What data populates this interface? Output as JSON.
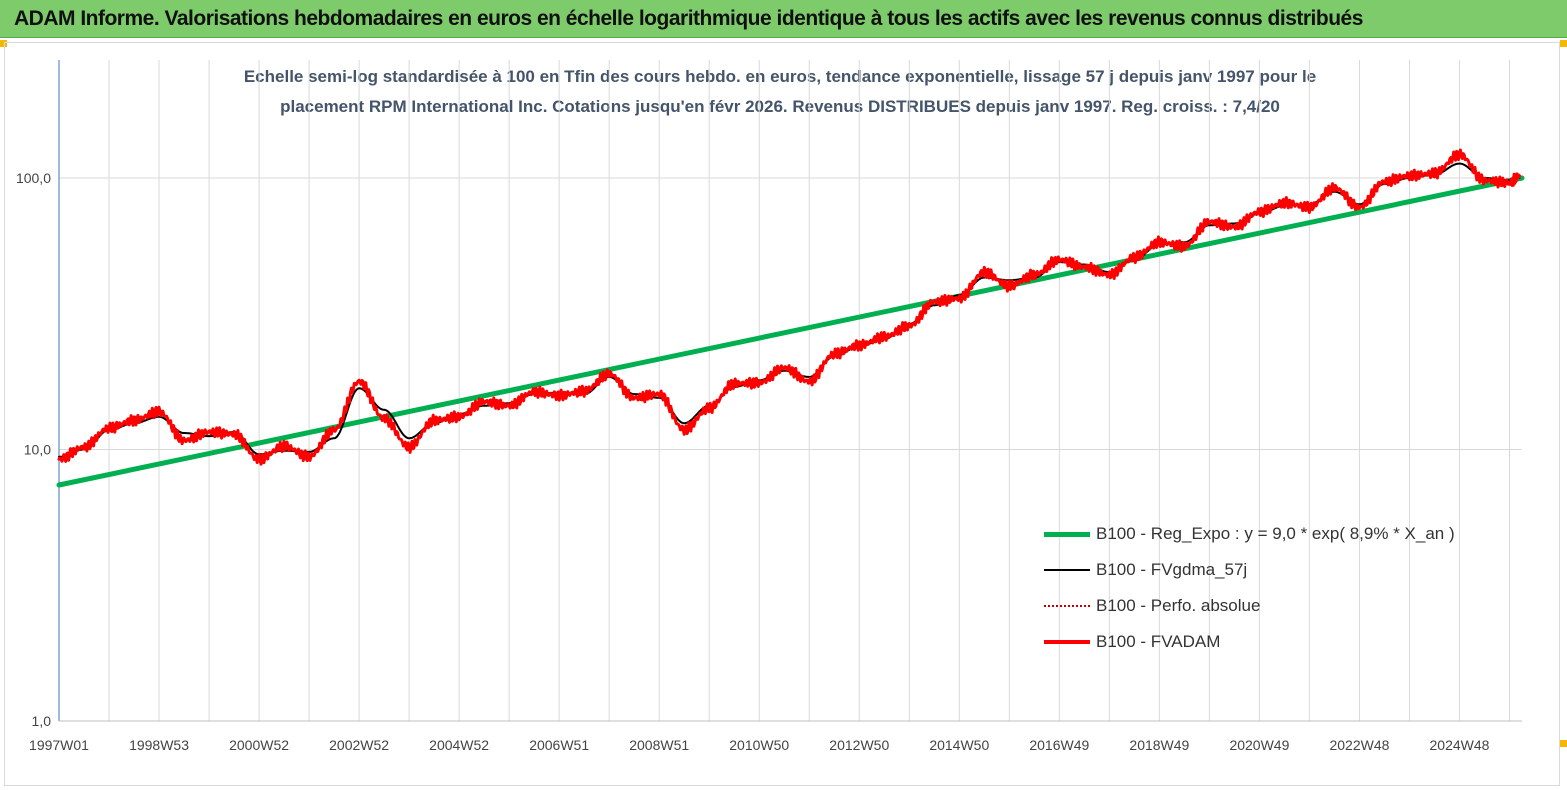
{
  "header": {
    "title": "ADAM Informe. Valorisations hebdomadaires en euros en échelle logarithmique identique à tous les actifs avec les revenus connus distribués"
  },
  "chart_data": {
    "type": "line",
    "title_line1": "Echelle semi-log standardisée à 100 en Tfin des cours hebdo. en euros, tendance exponentielle, lissage 57 j depuis janv 1997 pour le",
    "title_line2": "placement RPM International Inc. Cotations jusqu'en févr 2026. Revenus DISTRIBUES depuis janv 1997. Reg. croiss. : 7,4/20",
    "y_scale": "log",
    "ylim": [
      1,
      180
    ],
    "y_ticks": [
      "1,0",
      "10,0",
      "100,0"
    ],
    "x_range": [
      1997.0,
      2026.25
    ],
    "x_ticks": [
      "1997W01",
      "1998W53",
      "2000W52",
      "2002W52",
      "2004W52",
      "2006W51",
      "2008W51",
      "2010W50",
      "2012W50",
      "2014W50",
      "2016W49",
      "2018W49",
      "2020W49",
      "2022W48",
      "2024W48"
    ],
    "grid": "vertical",
    "legend_position": "right-middle",
    "colors": {
      "reg": "#00b050",
      "fvgdma": "#000000",
      "perfo": "#c00000",
      "fvadam": "#ff0000"
    },
    "series": [
      {
        "name": "B100 - Reg_Expo : y = 9,0 * exp( 8,9% *  X_an )",
        "key": "reg",
        "x": [
          1997.0,
          2026.25
        ],
        "values": [
          7.4,
          100
        ]
      },
      {
        "name": "B100 - FVgdma_57j",
        "key": "fvgdma",
        "x": [
          1997.0,
          1997.5,
          1998.0,
          1998.5,
          1999.0,
          1999.5,
          2000.0,
          2000.5,
          2001.0,
          2001.5,
          2002.0,
          2002.5,
          2003.0,
          2003.5,
          2004.0,
          2004.5,
          2005.0,
          2005.5,
          2006.0,
          2006.5,
          2007.0,
          2007.5,
          2008.0,
          2008.5,
          2009.0,
          2009.5,
          2010.0,
          2010.5,
          2011.0,
          2011.5,
          2012.0,
          2012.5,
          2013.0,
          2013.5,
          2014.0,
          2014.5,
          2015.0,
          2015.5,
          2016.0,
          2016.5,
          2017.0,
          2017.5,
          2018.0,
          2018.5,
          2019.0,
          2019.5,
          2020.0,
          2020.5,
          2021.0,
          2021.5,
          2022.0,
          2022.5,
          2023.0,
          2023.5,
          2024.0,
          2024.5,
          2025.0,
          2025.5,
          2026.0,
          2026.2
        ],
        "values": [
          9.4,
          10.0,
          11.8,
          12.5,
          13.2,
          11.5,
          11.2,
          11.6,
          9.6,
          9.9,
          9.8,
          11.0,
          16.8,
          14.0,
          11.0,
          12.5,
          13.5,
          14.5,
          14.8,
          16.0,
          16.2,
          16.0,
          18.5,
          16.0,
          15.5,
          12.5,
          14.5,
          17.0,
          18.0,
          19.5,
          18.5,
          22.0,
          24.0,
          25.5,
          29.0,
          34.0,
          37.0,
          43.0,
          42.0,
          43.0,
          49.0,
          48.0,
          45.0,
          50.0,
          57.0,
          58.0,
          67.0,
          68.0,
          74.0,
          79.0,
          80.0,
          89.0,
          80.0,
          95.0,
          100.0,
          103.0,
          113.0,
          100.0,
          98.0,
          100.0
        ]
      },
      {
        "name": "B100 - Perfo. absolue",
        "key": "perfo",
        "x": [],
        "values": []
      },
      {
        "name": "B100 - FVADAM",
        "key": "fvadam",
        "x": [
          1997.0,
          1997.5,
          1998.0,
          1998.5,
          1999.0,
          1999.5,
          2000.0,
          2000.5,
          2001.0,
          2001.5,
          2002.0,
          2002.5,
          2003.0,
          2003.5,
          2004.0,
          2004.5,
          2005.0,
          2005.5,
          2006.0,
          2006.5,
          2007.0,
          2007.5,
          2008.0,
          2008.5,
          2009.0,
          2009.5,
          2010.0,
          2010.5,
          2011.0,
          2011.5,
          2012.0,
          2012.5,
          2013.0,
          2013.5,
          2014.0,
          2014.5,
          2015.0,
          2015.5,
          2016.0,
          2016.5,
          2017.0,
          2017.5,
          2018.0,
          2018.5,
          2019.0,
          2019.5,
          2020.0,
          2020.5,
          2021.0,
          2021.5,
          2022.0,
          2022.5,
          2023.0,
          2023.5,
          2024.0,
          2024.5,
          2025.0,
          2025.5,
          2026.0,
          2026.2
        ],
        "values": [
          9.2,
          10.2,
          12.0,
          12.8,
          13.8,
          10.8,
          11.6,
          11.4,
          9.2,
          10.3,
          9.4,
          11.8,
          17.8,
          13.0,
          10.2,
          12.8,
          13.2,
          15.0,
          14.5,
          16.3,
          15.8,
          16.4,
          19.0,
          15.5,
          16.0,
          11.8,
          14.2,
          17.5,
          17.6,
          20.0,
          17.8,
          22.5,
          24.2,
          26.0,
          28.5,
          35.0,
          36.0,
          45.0,
          40.0,
          44.0,
          50.0,
          47.0,
          44.0,
          51.0,
          58.0,
          56.0,
          69.0,
          66.0,
          75.0,
          81.0,
          78.0,
          92.0,
          78.0,
          97.0,
          102.0,
          104.0,
          122.0,
          98.0,
          96.0,
          102.0
        ]
      }
    ]
  }
}
